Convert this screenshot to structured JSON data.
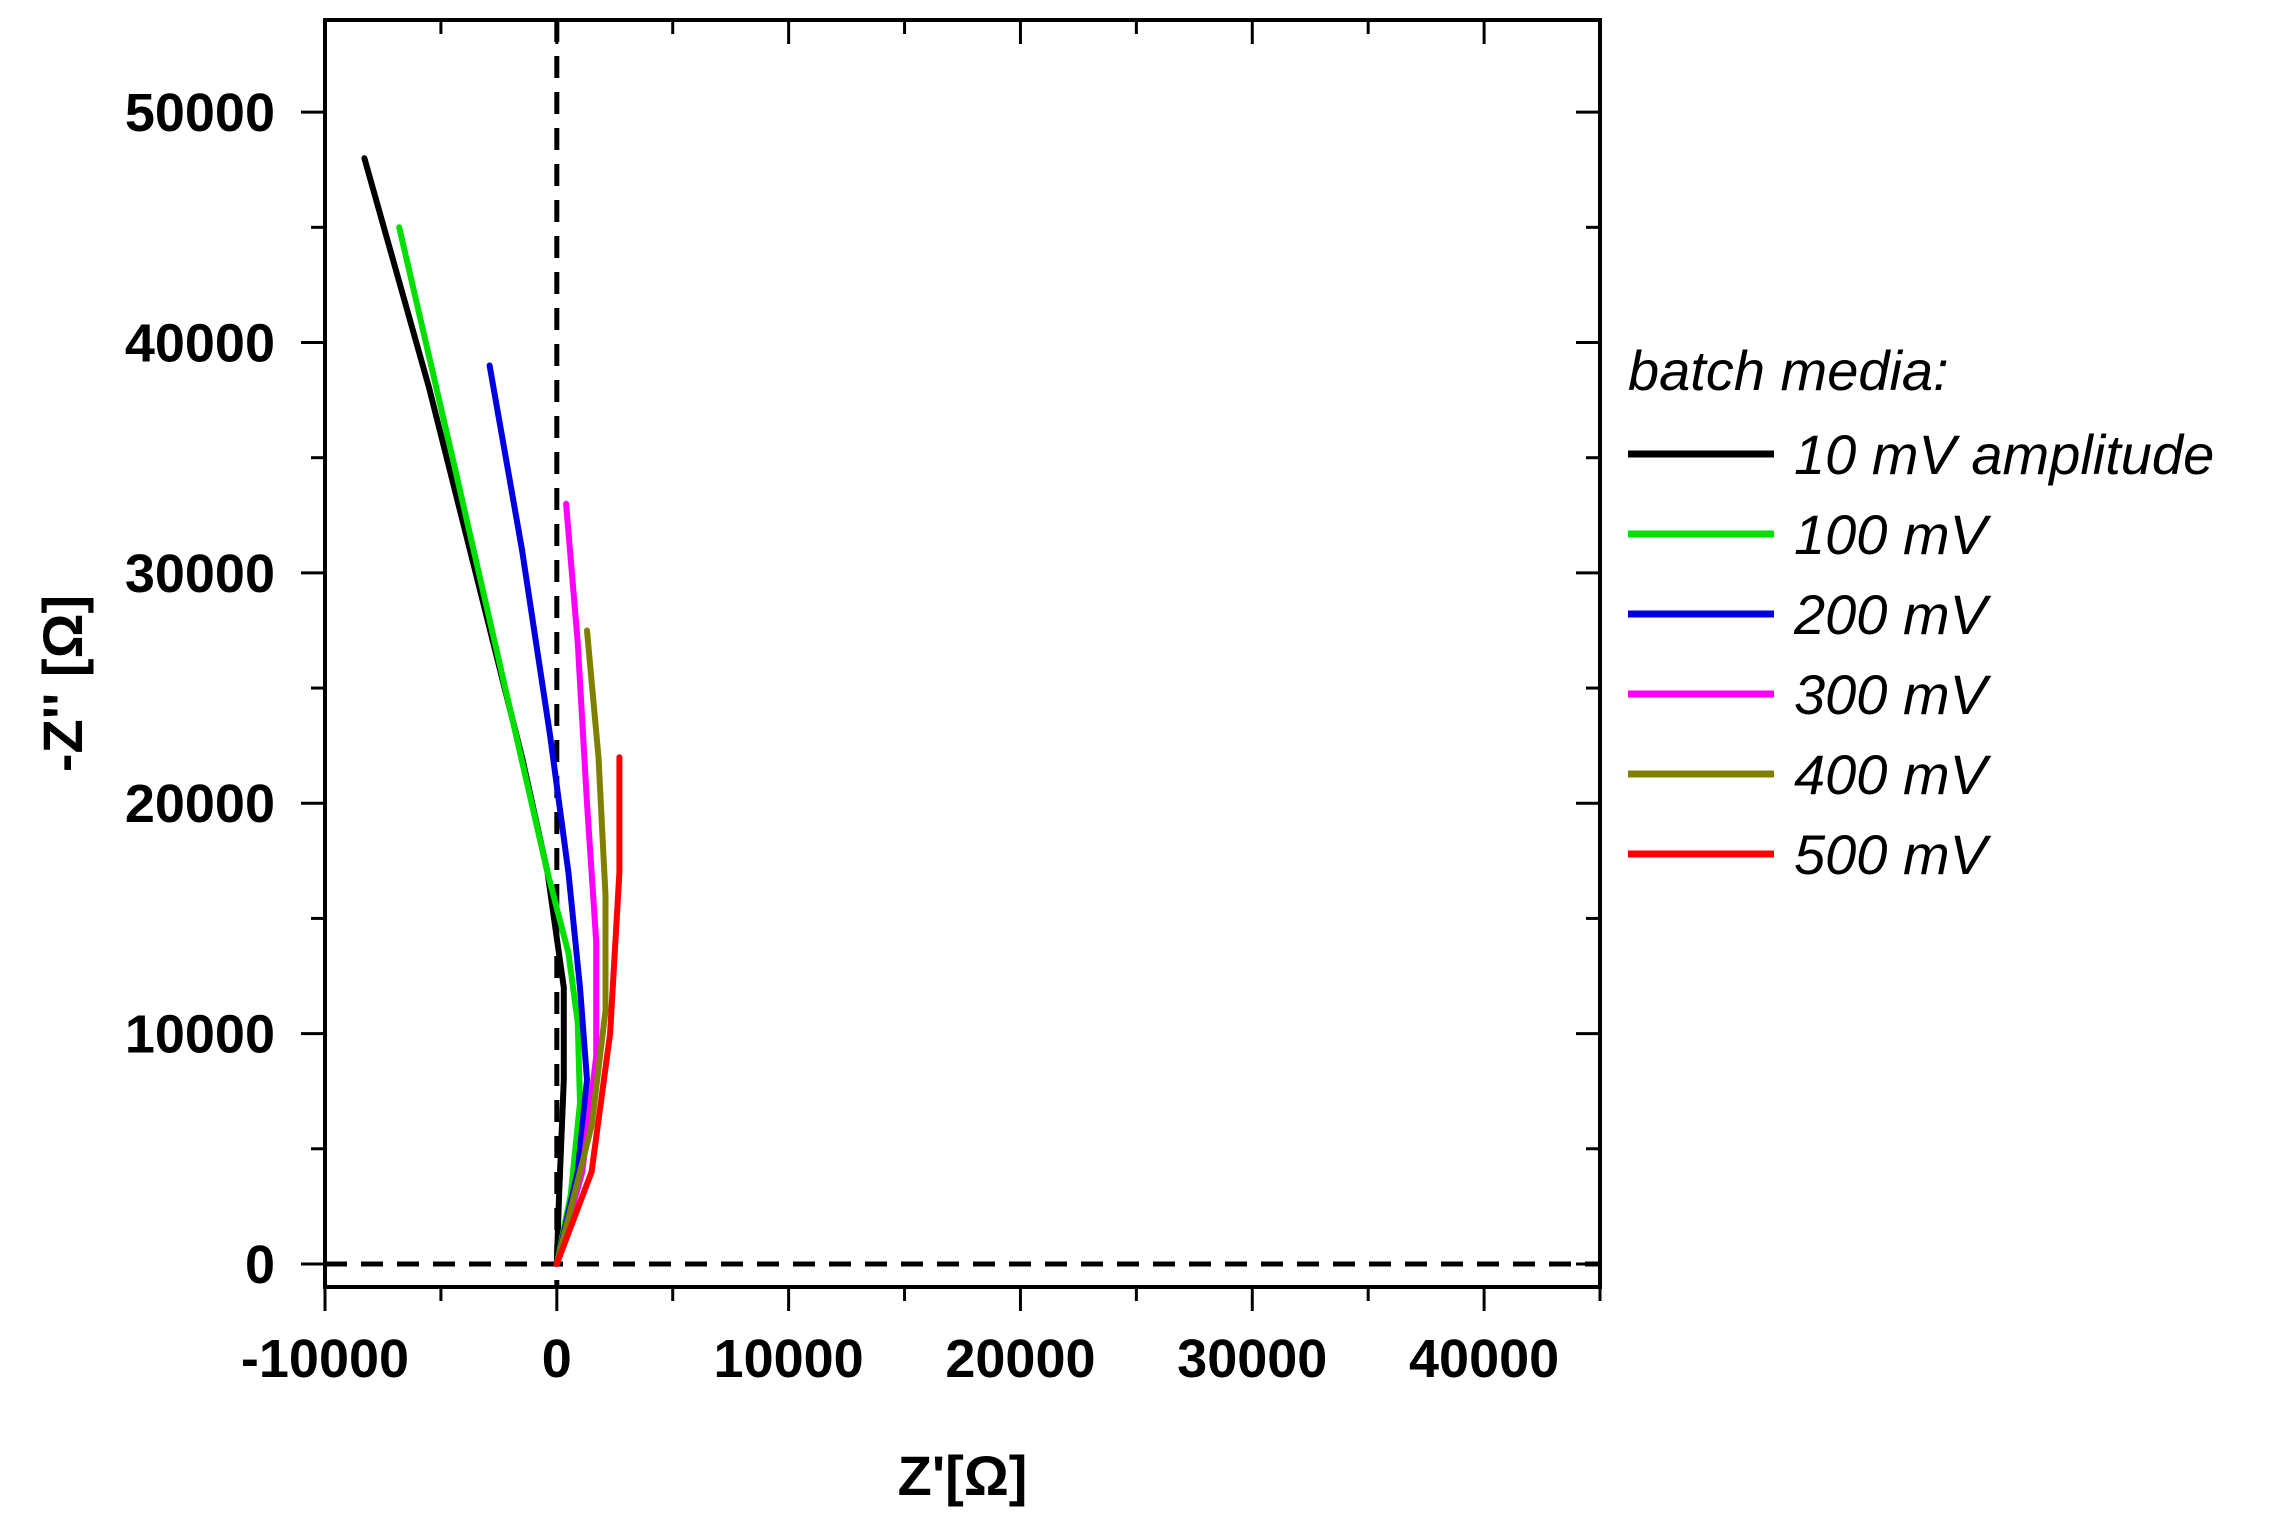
{
  "chart_data": {
    "type": "line",
    "xlabel": "Z'[Ω]",
    "ylabel": "-Z'' [Ω]",
    "xlim": [
      -10000,
      45000
    ],
    "ylim": [
      -1000,
      54000
    ],
    "x_ticks": [
      -10000,
      0,
      10000,
      20000,
      30000,
      40000
    ],
    "x_tick_labels": [
      "-10000",
      "0",
      "10000",
      "20000",
      "30000",
      "40000"
    ],
    "y_ticks": [
      0,
      10000,
      20000,
      30000,
      40000,
      50000
    ],
    "y_tick_labels": [
      "0",
      "10000",
      "20000",
      "30000",
      "40000",
      "50000"
    ],
    "reference_lines": [
      {
        "orientation": "vertical",
        "value": 0,
        "style": "dashed"
      },
      {
        "orientation": "horizontal",
        "value": 0,
        "style": "dashed"
      }
    ],
    "grid": false,
    "legend": {
      "title": "batch media:",
      "placement": "right"
    },
    "series": [
      {
        "name": "10 mV amplitude",
        "color": "#000000",
        "x": [
          0,
          100,
          300,
          300,
          -400,
          -1500,
          -3500,
          -5500,
          -8300
        ],
        "y": [
          0,
          3000,
          8000,
          12000,
          17000,
          22000,
          30000,
          38000,
          48000
        ]
      },
      {
        "name": "100 mV",
        "color": "#00e000",
        "x": [
          0,
          600,
          1000,
          900,
          500,
          -400,
          -2000,
          -4500,
          -6800
        ],
        "y": [
          0,
          3000,
          7000,
          10500,
          13500,
          17000,
          24000,
          35000,
          45000
        ]
      },
      {
        "name": "200 mV",
        "color": "#0000e0",
        "x": [
          0,
          900,
          1300,
          1000,
          500,
          -300,
          -1500,
          -2900
        ],
        "y": [
          0,
          4000,
          8000,
          12000,
          17000,
          23000,
          31000,
          39000
        ]
      },
      {
        "name": "300 mV",
        "color": "#ff00ff",
        "x": [
          0,
          1100,
          1700,
          1700,
          1300,
          900,
          400
        ],
        "y": [
          0,
          4000,
          9000,
          14000,
          20000,
          27000,
          33000
        ]
      },
      {
        "name": "400 mV",
        "color": "#808000",
        "x": [
          0,
          1500,
          2100,
          2100,
          1800,
          1300
        ],
        "y": [
          0,
          6000,
          11000,
          16000,
          22000,
          27500
        ]
      },
      {
        "name": "500 mV",
        "color": "#ff0000",
        "x": [
          0,
          1500,
          2300,
          2700,
          2700
        ],
        "y": [
          0,
          4000,
          10000,
          17000,
          22000
        ]
      }
    ]
  }
}
